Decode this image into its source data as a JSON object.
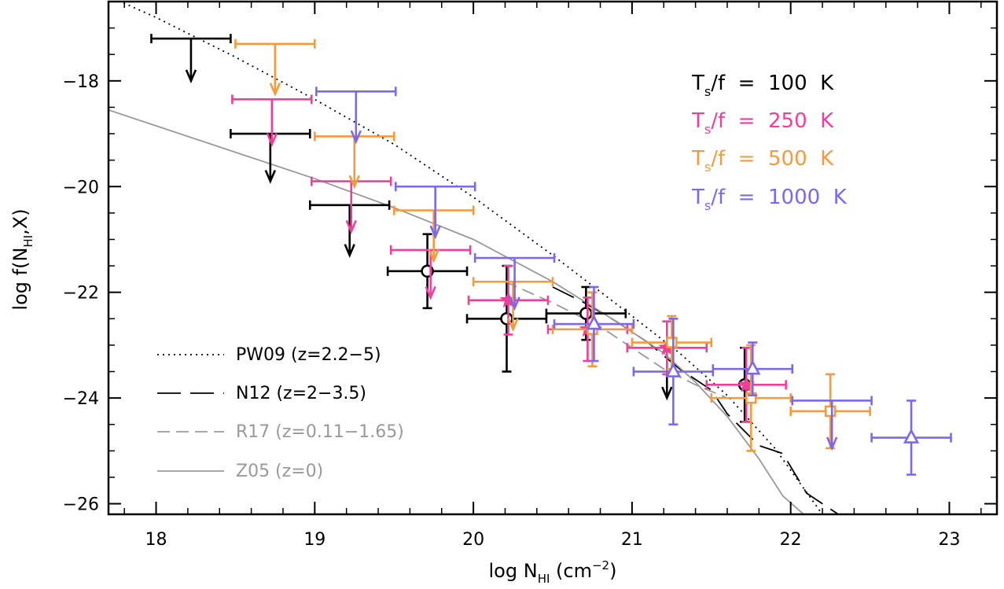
{
  "chart_data": {
    "type": "scatter",
    "title": "",
    "xlabel": {
      "main": "log N",
      "sub": "HI",
      "tail": " (cm",
      "sup": "−2",
      "end": ")"
    },
    "ylabel": {
      "main": "log f(N",
      "sub": "HI",
      "tail": ",X)"
    },
    "xlim": [
      17.7,
      23.3
    ],
    "ylim": [
      -26.2,
      -16.5
    ],
    "xticks": [
      {
        "value": 18,
        "label": "18"
      },
      {
        "value": 19,
        "label": "19"
      },
      {
        "value": 20,
        "label": "20"
      },
      {
        "value": 21,
        "label": "21"
      },
      {
        "value": 22,
        "label": "22"
      },
      {
        "value": 23,
        "label": "23"
      }
    ],
    "yticks": [
      {
        "value": -18,
        "label": "−18"
      },
      {
        "value": -20,
        "label": "−20"
      },
      {
        "value": -22,
        "label": "−22"
      },
      {
        "value": -24,
        "label": "−24"
      },
      {
        "value": -26,
        "label": "−26"
      }
    ],
    "grid": false,
    "legend_temperatures": {
      "placement": "top-right",
      "entries": [
        {
          "prefix": "T",
          "sub": "s",
          "text": "/f  =  100  K",
          "color": "#000000"
        },
        {
          "prefix": "T",
          "sub": "s",
          "text": "/f  =  250  K",
          "color": "#ee3f9a"
        },
        {
          "prefix": "T",
          "sub": "s",
          "text": "/f  =  500  K",
          "color": "#f59a3c"
        },
        {
          "prefix": "T",
          "sub": "s",
          "text": "/f  =  1000  K",
          "color": "#7b68ee"
        }
      ]
    },
    "legend_lines": {
      "placement": "bottom-left",
      "entries": [
        {
          "label": "PW09 (z=2.2−5)",
          "color": "#000000",
          "dash": "dotted",
          "text_color": "#000000"
        },
        {
          "label": "N12 (z=2−3.5)",
          "color": "#000000",
          "dash": "long-dash",
          "text_color": "#000000"
        },
        {
          "label": "R17 (z=0.11−1.65)",
          "color": "#999999",
          "dash": "dash",
          "text_color": "#999999"
        },
        {
          "label": "Z05 (z=0)",
          "color": "#999999",
          "dash": "solid",
          "text_color": "#999999"
        }
      ]
    },
    "curves": [
      {
        "name": "PW09",
        "color": "#000000",
        "dash": "dotted",
        "x": [
          17.7,
          18.0,
          18.5,
          19.0,
          19.5,
          20.0,
          20.5,
          21.0,
          21.3,
          21.6,
          21.9,
          22.2
        ],
        "y": [
          -16.4,
          -16.8,
          -17.55,
          -18.35,
          -19.2,
          -20.2,
          -21.3,
          -22.45,
          -23.15,
          -23.95,
          -24.95,
          -26.2
        ]
      },
      {
        "name": "N12",
        "color": "#000000",
        "dash": "long-dash",
        "x": [
          20.5,
          20.7,
          20.9,
          21.1,
          21.3,
          21.5,
          21.6,
          21.8,
          21.95,
          22.1,
          22.3
        ],
        "y": [
          -21.9,
          -22.2,
          -22.55,
          -22.95,
          -23.45,
          -23.85,
          -24.3,
          -24.9,
          -25.05,
          -25.8,
          -26.2
        ]
      },
      {
        "name": "R17",
        "color": "#999999",
        "dash": "dash",
        "x": [
          20.2,
          20.5,
          20.8,
          21.0,
          21.2,
          21.4,
          21.6
        ],
        "y": [
          -21.8,
          -22.2,
          -22.65,
          -23.05,
          -23.45,
          -23.75,
          -24.0
        ]
      },
      {
        "name": "Z05",
        "color": "#999999",
        "dash": "solid",
        "x": [
          17.7,
          18.0,
          18.5,
          19.0,
          19.5,
          20.0,
          20.5,
          20.9,
          21.2,
          21.4,
          21.6,
          21.8,
          21.95,
          22.1
        ],
        "y": [
          -18.55,
          -18.85,
          -19.35,
          -19.85,
          -20.4,
          -21.0,
          -21.8,
          -22.55,
          -23.15,
          -23.7,
          -24.35,
          -25.15,
          -25.85,
          -26.25
        ]
      }
    ],
    "series": [
      {
        "color": "#000000",
        "upper_limits": [
          {
            "x": 18.22,
            "xerr": 0.25,
            "y": -17.2,
            "y_arrow": -18.0
          },
          {
            "x": 18.72,
            "xerr": 0.25,
            "y": -19.0,
            "y_arrow": -19.9
          },
          {
            "x": 19.22,
            "xerr": 0.25,
            "y": -20.35,
            "y_arrow": -21.3
          },
          {
            "x": 21.22,
            "xerr": 0.0,
            "y": -23.3,
            "y_arrow": -24.0
          }
        ],
        "points": [
          {
            "x": 19.71,
            "y": -21.6,
            "xerr": 0.25,
            "yerr_lo": 0.7,
            "yerr_hi": 0.7,
            "marker": "circle"
          },
          {
            "x": 20.21,
            "y": -22.5,
            "xerr": 0.25,
            "yerr_lo": 1.0,
            "yerr_hi": 1.0,
            "marker": "circle"
          },
          {
            "x": 20.71,
            "y": -22.4,
            "xerr": 0.25,
            "yerr_lo": 0.5,
            "yerr_hi": 0.5,
            "marker": "circle"
          },
          {
            "x": 21.71,
            "y": -23.75,
            "xerr": 0.0,
            "yerr_lo": 0.7,
            "yerr_hi": 0.7,
            "marker": "circle"
          }
        ]
      },
      {
        "color": "#ee3f9a",
        "upper_limits": [
          {
            "x": 18.73,
            "xerr": 0.25,
            "y": -18.35,
            "y_arrow": -19.2
          },
          {
            "x": 19.23,
            "xerr": 0.25,
            "y": -19.9,
            "y_arrow": -20.85
          },
          {
            "x": 19.73,
            "xerr": 0.25,
            "y": -21.2,
            "y_arrow": -22.1
          }
        ],
        "points": [
          {
            "x": 20.22,
            "y": -22.15,
            "xerr": 0.25,
            "yerr_lo": 0.65,
            "yerr_hi": 0.65,
            "marker": "star"
          },
          {
            "x": 20.72,
            "y": -22.7,
            "xerr": 0.25,
            "yerr_lo": 0.6,
            "yerr_hi": 0.6,
            "marker": "star"
          },
          {
            "x": 21.22,
            "y": -23.05,
            "xerr": 0.25,
            "yerr_lo": 0.5,
            "yerr_hi": 0.5,
            "marker": "star"
          },
          {
            "x": 21.72,
            "y": -23.75,
            "xerr": 0.25,
            "yerr_lo": 0.7,
            "yerr_hi": 0.7,
            "marker": "star"
          }
        ]
      },
      {
        "color": "#f59a3c",
        "upper_limits": [
          {
            "x": 18.75,
            "xerr": 0.25,
            "y": -17.3,
            "y_arrow": -18.25
          },
          {
            "x": 19.25,
            "xerr": 0.25,
            "y": -19.05,
            "y_arrow": -20.0
          },
          {
            "x": 19.75,
            "xerr": 0.25,
            "y": -20.45,
            "y_arrow": -21.4
          },
          {
            "x": 20.25,
            "xerr": 0.25,
            "y": -21.8,
            "y_arrow": -22.7
          }
        ],
        "points": [
          {
            "x": 20.75,
            "y": -22.7,
            "xerr": 0.25,
            "yerr_lo": 0.7,
            "yerr_hi": 0.7,
            "marker": "square"
          },
          {
            "x": 21.25,
            "y": -22.95,
            "xerr": 0.25,
            "yerr_lo": 0.5,
            "yerr_hi": 0.5,
            "marker": "square"
          },
          {
            "x": 21.75,
            "y": -24.0,
            "xerr": 0.25,
            "yerr_lo": 1.0,
            "yerr_hi": 1.0,
            "marker": "square"
          },
          {
            "x": 22.25,
            "y": -24.25,
            "xerr": 0.25,
            "yerr_lo": 0.7,
            "yerr_hi": 0.7,
            "marker": "square"
          }
        ]
      },
      {
        "color": "#7b68ee",
        "upper_limits": [
          {
            "x": 19.26,
            "xerr": 0.25,
            "y": -18.2,
            "y_arrow": -19.15
          },
          {
            "x": 19.76,
            "xerr": 0.25,
            "y": -20.0,
            "y_arrow": -20.95
          },
          {
            "x": 20.26,
            "xerr": 0.25,
            "y": -21.35,
            "y_arrow": -22.3
          },
          {
            "x": 22.26,
            "xerr": 0.25,
            "y": -24.05,
            "y_arrow": -24.95
          }
        ],
        "points": [
          {
            "x": 20.76,
            "y": -22.6,
            "xerr": 0.25,
            "yerr_lo": 0.7,
            "yerr_hi": 0.7,
            "marker": "triangle"
          },
          {
            "x": 21.26,
            "y": -23.5,
            "xerr": 0.25,
            "yerr_lo": 1.0,
            "yerr_hi": 1.0,
            "marker": "triangle"
          },
          {
            "x": 21.76,
            "y": -23.45,
            "xerr": 0.25,
            "yerr_lo": 0.5,
            "yerr_hi": 0.5,
            "marker": "triangle"
          },
          {
            "x": 22.76,
            "y": -24.75,
            "xerr": 0.25,
            "yerr_lo": 0.7,
            "yerr_hi": 0.7,
            "marker": "triangle"
          }
        ]
      }
    ]
  }
}
